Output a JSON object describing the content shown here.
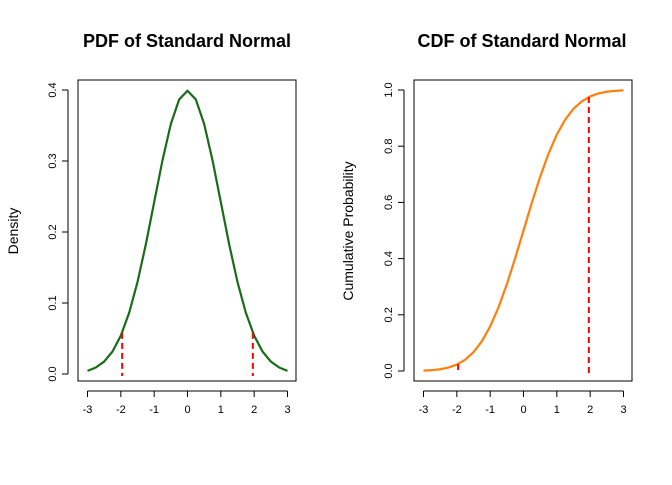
{
  "chart_data": [
    {
      "type": "line",
      "title": "PDF of Standard Normal",
      "xlabel": "",
      "ylabel": "Density",
      "xlim": [
        -3,
        3
      ],
      "ylim": [
        0,
        0.4
      ],
      "x_ticks": [
        "-3",
        "-2",
        "-1",
        "0",
        "1",
        "2",
        "3"
      ],
      "y_ticks": [
        "0.0",
        "0.1",
        "0.2",
        "0.3",
        "0.4"
      ],
      "grid": false,
      "line_color": "#1a6b1a",
      "marker_color": "#ff0000",
      "curve": {
        "x": [
          -3.0,
          -2.75,
          -2.5,
          -2.25,
          -2.0,
          -1.75,
          -1.5,
          -1.25,
          -1.0,
          -0.75,
          -0.5,
          -0.25,
          0.0,
          0.25,
          0.5,
          0.75,
          1.0,
          1.25,
          1.5,
          1.75,
          2.0,
          2.25,
          2.5,
          2.75,
          3.0
        ],
        "y": [
          0.0044,
          0.0091,
          0.0175,
          0.0317,
          0.054,
          0.0863,
          0.1295,
          0.1826,
          0.242,
          0.3011,
          0.3521,
          0.3867,
          0.3989,
          0.3867,
          0.3521,
          0.3011,
          0.242,
          0.1826,
          0.1295,
          0.0863,
          0.054,
          0.0317,
          0.0175,
          0.0091,
          0.0044
        ]
      },
      "markers": [
        {
          "x": -1.96,
          "y": 0.058
        },
        {
          "x": 1.96,
          "y": 0.058
        }
      ]
    },
    {
      "type": "line",
      "title": "CDF of Standard Normal",
      "xlabel": "",
      "ylabel": "Cumulative Probability",
      "xlim": [
        -3,
        3
      ],
      "ylim": [
        0,
        1
      ],
      "x_ticks": [
        "-3",
        "-2",
        "-1",
        "0",
        "1",
        "2",
        "3"
      ],
      "y_ticks": [
        "0.0",
        "0.2",
        "0.4",
        "0.6",
        "0.8",
        "1.0"
      ],
      "grid": false,
      "line_color": "#ff7f0e",
      "marker_color": "#ff0000",
      "curve": {
        "x": [
          -3.0,
          -2.75,
          -2.5,
          -2.25,
          -2.0,
          -1.75,
          -1.5,
          -1.25,
          -1.0,
          -0.75,
          -0.5,
          -0.25,
          0.0,
          0.25,
          0.5,
          0.75,
          1.0,
          1.25,
          1.5,
          1.75,
          2.0,
          2.25,
          2.5,
          2.75,
          3.0
        ],
        "y": [
          0.0013,
          0.003,
          0.0062,
          0.0122,
          0.0228,
          0.0401,
          0.0668,
          0.1056,
          0.1587,
          0.2266,
          0.3085,
          0.4013,
          0.5,
          0.5987,
          0.6915,
          0.7734,
          0.8413,
          0.8944,
          0.9332,
          0.9599,
          0.9772,
          0.9878,
          0.9938,
          0.997,
          0.9987
        ]
      },
      "markers": [
        {
          "x": -1.96,
          "y": 0.025
        },
        {
          "x": 1.96,
          "y": 0.975
        }
      ]
    }
  ]
}
